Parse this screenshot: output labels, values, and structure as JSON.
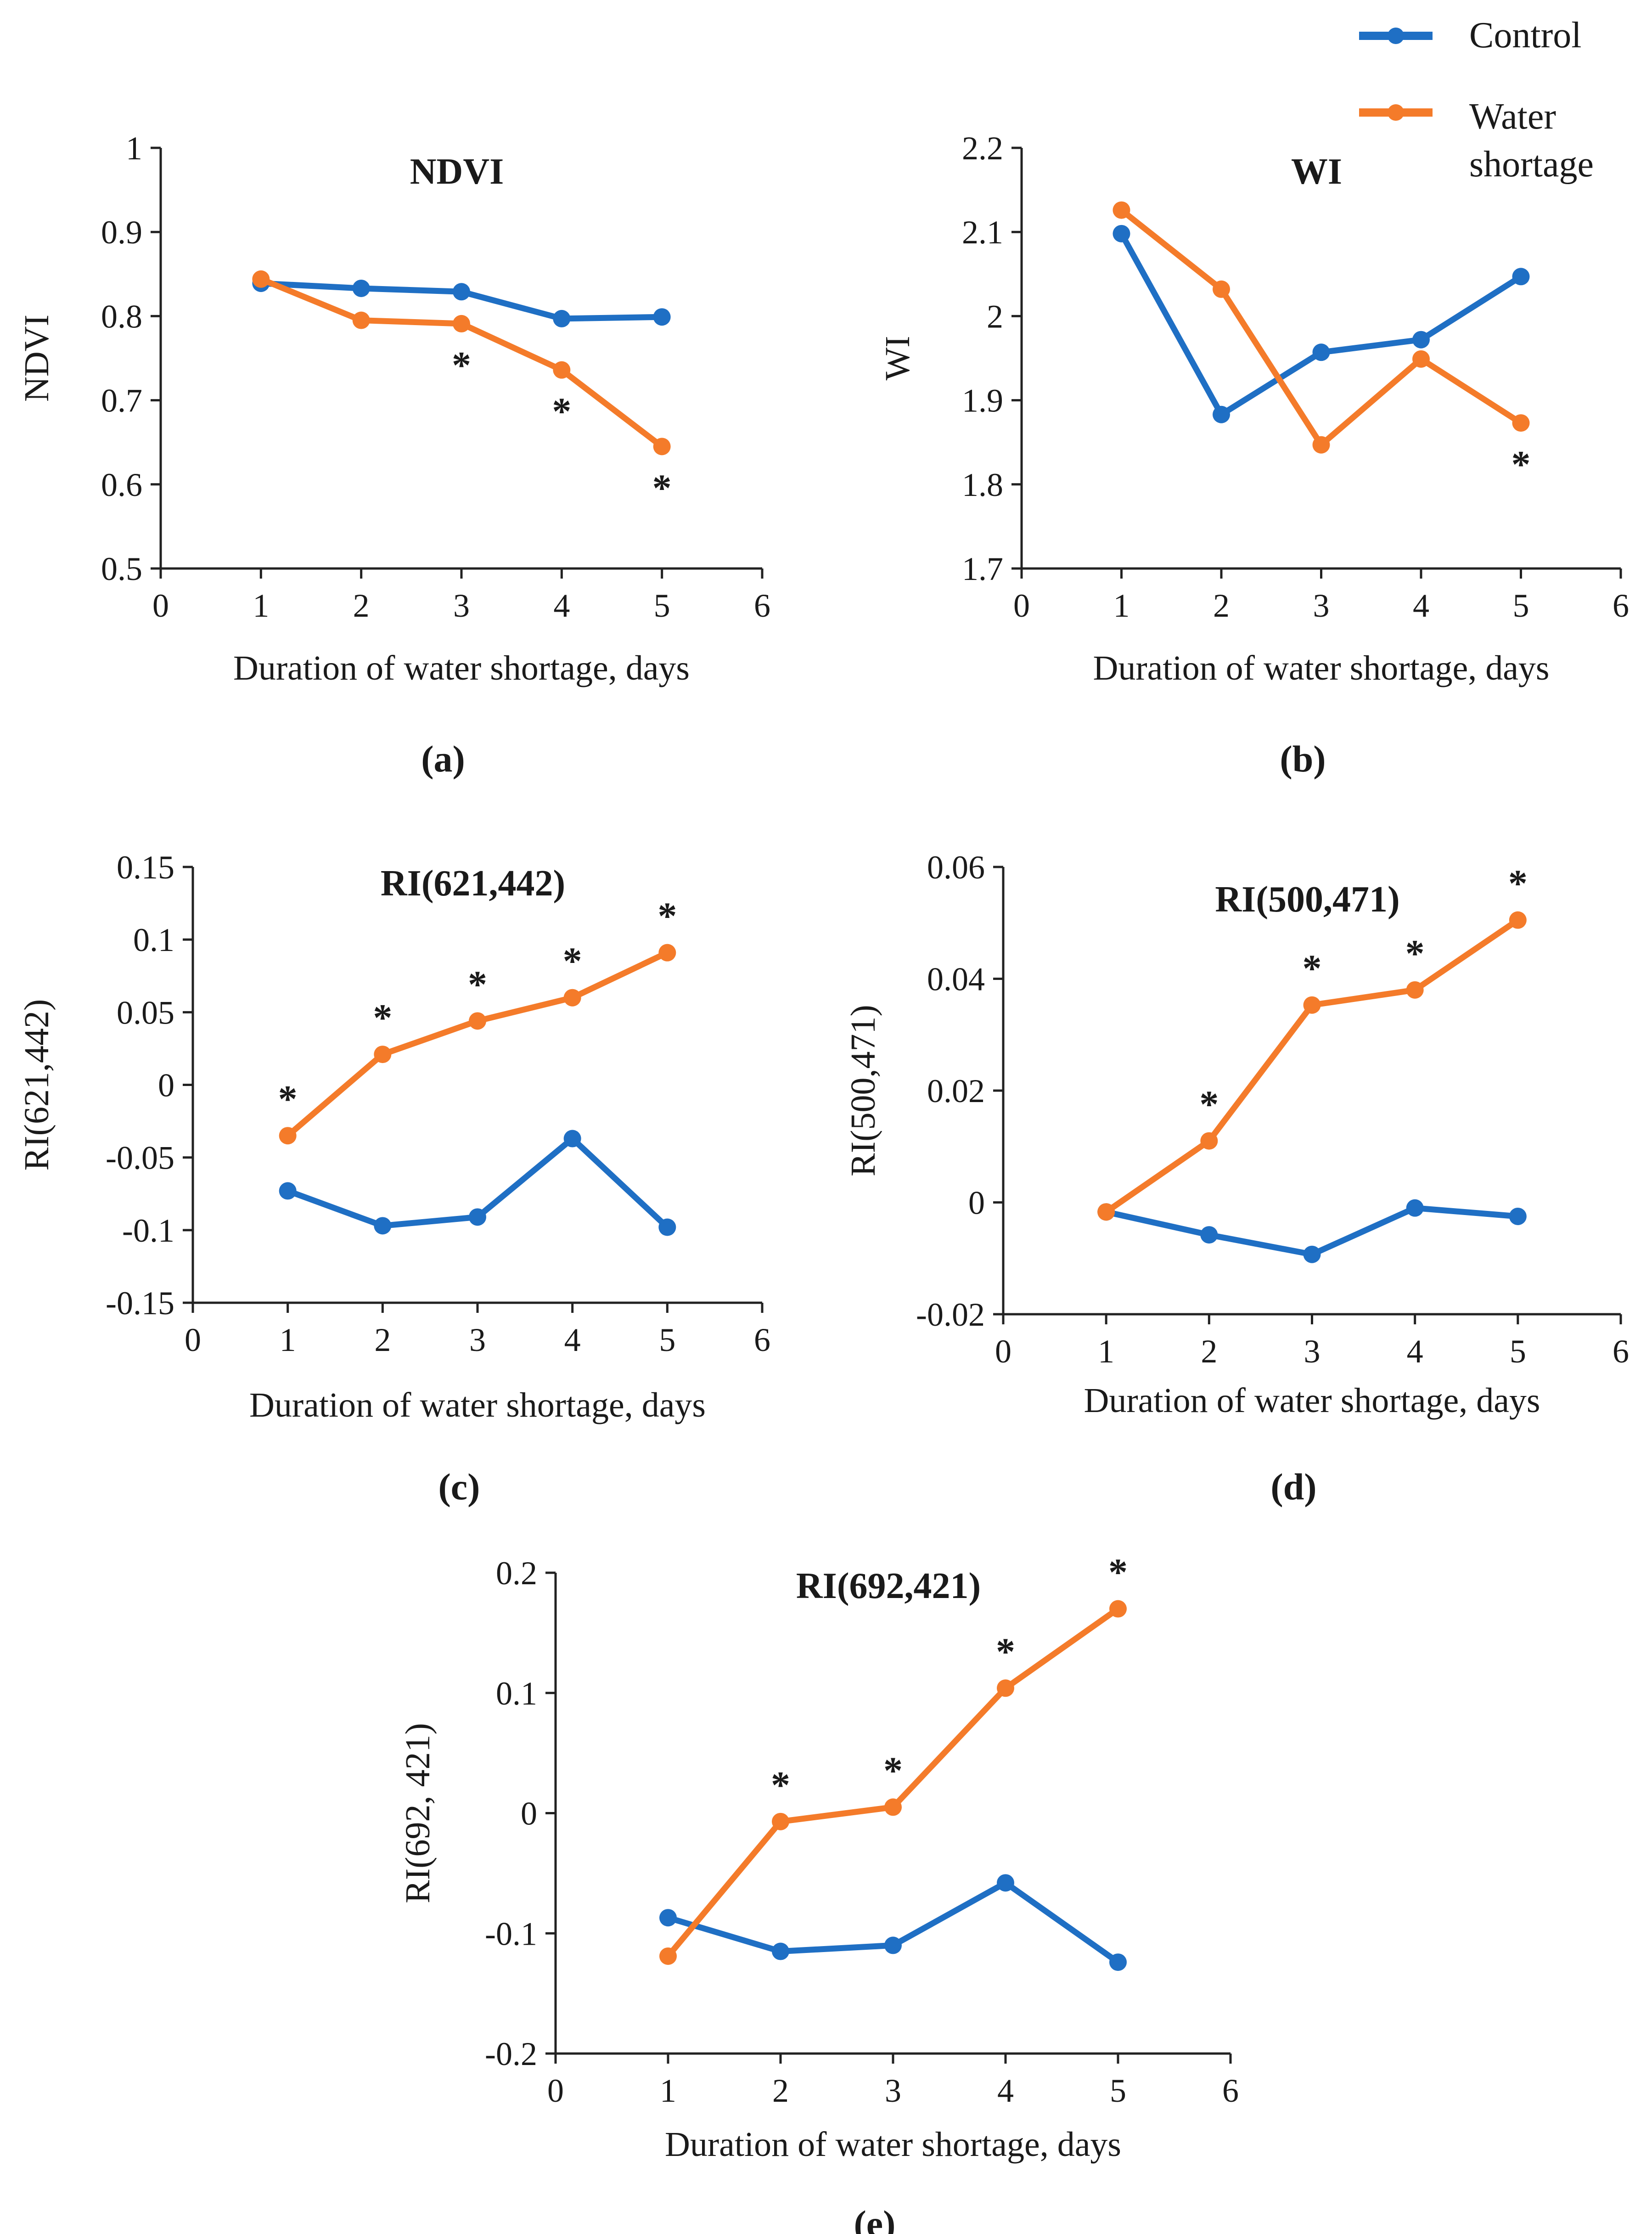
{
  "legend": {
    "items": [
      {
        "name": "Control",
        "color": "#1f6fc4"
      },
      {
        "name": "Water shortage",
        "color": "#f47b2a",
        "lines": [
          "Water",
          "shortage"
        ]
      }
    ]
  },
  "chart_data": [
    {
      "id": "a",
      "type": "line",
      "title": "NDVI",
      "panel_label": "(a)",
      "xlabel": "Duration of water shortage, days",
      "ylabel": "NDVI",
      "xlim": [
        0,
        6
      ],
      "ylim": [
        0.5,
        1
      ],
      "xticks": [
        "0",
        "1",
        "2",
        "3",
        "4",
        "5",
        "6"
      ],
      "yticks": [
        "0.5",
        "0.6",
        "0.7",
        "0.8",
        "0.9",
        "1"
      ],
      "x": [
        1,
        2,
        3,
        4,
        5
      ],
      "series": [
        {
          "name": "Control",
          "color": "#1f6fc4",
          "values": [
            0.839,
            0.833,
            0.829,
            0.797,
            0.799
          ]
        },
        {
          "name": "Water shortage",
          "color": "#f47b2a",
          "values": [
            0.844,
            0.795,
            0.791,
            0.736,
            0.645
          ]
        }
      ],
      "annotations": [
        {
          "x": 3,
          "text": "*"
        },
        {
          "x": 4,
          "text": "*"
        },
        {
          "x": 5,
          "text": "*"
        }
      ]
    },
    {
      "id": "b",
      "type": "line",
      "title": "WI",
      "panel_label": "(b)",
      "xlabel": "Duration of water shortage, days",
      "ylabel": "WI",
      "xlim": [
        0,
        6
      ],
      "ylim": [
        1.7,
        2.2
      ],
      "xticks": [
        "0",
        "1",
        "2",
        "3",
        "4",
        "5",
        "6"
      ],
      "yticks": [
        "1.7",
        "1.8",
        "1.9",
        "2",
        "2.1",
        "2.2"
      ],
      "x": [
        1,
        2,
        3,
        4,
        5
      ],
      "series": [
        {
          "name": "Control",
          "color": "#1f6fc4",
          "values": [
            2.098,
            1.883,
            1.957,
            1.972,
            2.047
          ]
        },
        {
          "name": "Water shortage",
          "color": "#f47b2a",
          "values": [
            2.126,
            2.032,
            1.847,
            1.949,
            1.873
          ]
        }
      ],
      "annotations": [
        {
          "x": 5,
          "text": "*"
        }
      ]
    },
    {
      "id": "c",
      "type": "line",
      "title": "RI(621,442)",
      "panel_label": "(c)",
      "xlabel": "Duration of water shortage, days",
      "ylabel": "RI(621,442)",
      "xlim": [
        0,
        6
      ],
      "ylim": [
        -0.15,
        0.15
      ],
      "xticks": [
        "0",
        "1",
        "2",
        "3",
        "4",
        "5",
        "6"
      ],
      "yticks": [
        "-0.15",
        "-0.1",
        "-0.05",
        "0",
        "0.05",
        "0.1",
        "0.15"
      ],
      "x": [
        1,
        2,
        3,
        4,
        5
      ],
      "series": [
        {
          "name": "Control",
          "color": "#1f6fc4",
          "values": [
            -0.073,
            -0.097,
            -0.091,
            -0.037,
            -0.098
          ]
        },
        {
          "name": "Water shortage",
          "color": "#f47b2a",
          "values": [
            -0.035,
            0.021,
            0.044,
            0.06,
            0.091
          ]
        }
      ],
      "annotations": [
        {
          "x": 1,
          "text": "*"
        },
        {
          "x": 2,
          "text": "*"
        },
        {
          "x": 3,
          "text": "*"
        },
        {
          "x": 4,
          "text": "*"
        },
        {
          "x": 5,
          "text": "*"
        }
      ]
    },
    {
      "id": "d",
      "type": "line",
      "title": "RI(500,471)",
      "panel_label": "(d)",
      "xlabel": "Duration of water shortage, days",
      "ylabel": "RI(500,471)",
      "xlim": [
        0,
        6
      ],
      "ylim": [
        -0.02,
        0.06
      ],
      "xticks": [
        "0",
        "1",
        "2",
        "3",
        "4",
        "5",
        "6"
      ],
      "yticks": [
        "-0.02",
        "0",
        "0.02",
        "0.04",
        "0.06"
      ],
      "x": [
        1,
        2,
        3,
        4,
        5
      ],
      "series": [
        {
          "name": "Control",
          "color": "#1f6fc4",
          "values": [
            -0.0017,
            -0.0058,
            -0.0093,
            -0.001,
            -0.0025
          ]
        },
        {
          "name": "Water shortage",
          "color": "#f47b2a",
          "values": [
            -0.0017,
            0.011,
            0.0353,
            0.038,
            0.0505
          ]
        }
      ],
      "annotations": [
        {
          "x": 2,
          "text": "*"
        },
        {
          "x": 3,
          "text": "*"
        },
        {
          "x": 4,
          "text": "*"
        },
        {
          "x": 5,
          "text": "*"
        }
      ]
    },
    {
      "id": "e",
      "type": "line",
      "title": "RI(692,421)",
      "panel_label": "(e)",
      "xlabel": "Duration of water shortage, days",
      "ylabel": "RI(692, 421)",
      "xlim": [
        0,
        6
      ],
      "ylim": [
        -0.2,
        0.2
      ],
      "xticks": [
        "0",
        "1",
        "2",
        "3",
        "4",
        "5",
        "6"
      ],
      "yticks": [
        "-0.2",
        "-0.1",
        "0",
        "0.1",
        "0.2"
      ],
      "x": [
        1,
        2,
        3,
        4,
        5
      ],
      "series": [
        {
          "name": "Control",
          "color": "#1f6fc4",
          "values": [
            -0.087,
            -0.115,
            -0.11,
            -0.058,
            -0.124
          ]
        },
        {
          "name": "Water shortage",
          "color": "#f47b2a",
          "values": [
            -0.119,
            -0.007,
            0.005,
            0.104,
            0.17
          ]
        }
      ],
      "annotations": [
        {
          "x": 2,
          "text": "*"
        },
        {
          "x": 3,
          "text": "*"
        },
        {
          "x": 4,
          "text": "*"
        },
        {
          "x": 5,
          "text": "*"
        }
      ]
    }
  ]
}
